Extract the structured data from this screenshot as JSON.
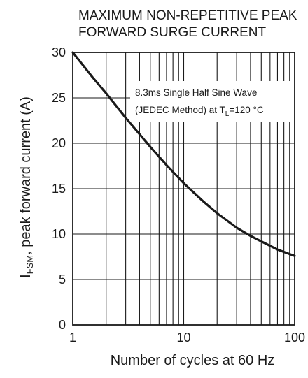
{
  "chart_data": {
    "type": "line",
    "title": "MAXIMUM NON-REPETITIVE PEAK",
    "subtitle": "FORWARD SURGE CURRENT",
    "xlabel": "Number of cycles at 60 Hz",
    "ylabel": {
      "prefix": "I",
      "sub": "FSM",
      "rest": ", peak forward current (A)"
    },
    "x_scale": "log",
    "xlim": [
      1,
      100
    ],
    "ylim": [
      0,
      30
    ],
    "x_ticks": [
      "1",
      "10",
      "100"
    ],
    "y_ticks": [
      "0",
      "5",
      "10",
      "15",
      "20",
      "25",
      "30"
    ],
    "grid": true,
    "annotation": {
      "line1": "8.3ms Single Half Sine Wave",
      "line2_prefix": "(JEDEC Method) at T",
      "line2_sub": "L",
      "line2_suffix": "=120 °C"
    },
    "series": [
      {
        "x": [
          1,
          1.5,
          2,
          3,
          4,
          5,
          7,
          10,
          15,
          20,
          30,
          40,
          50,
          70,
          100
        ],
        "values": [
          30,
          27.3,
          25.5,
          22.8,
          21.0,
          19.6,
          17.6,
          15.6,
          13.6,
          12.3,
          10.7,
          9.8,
          9.2,
          8.3,
          7.6
        ]
      }
    ]
  }
}
